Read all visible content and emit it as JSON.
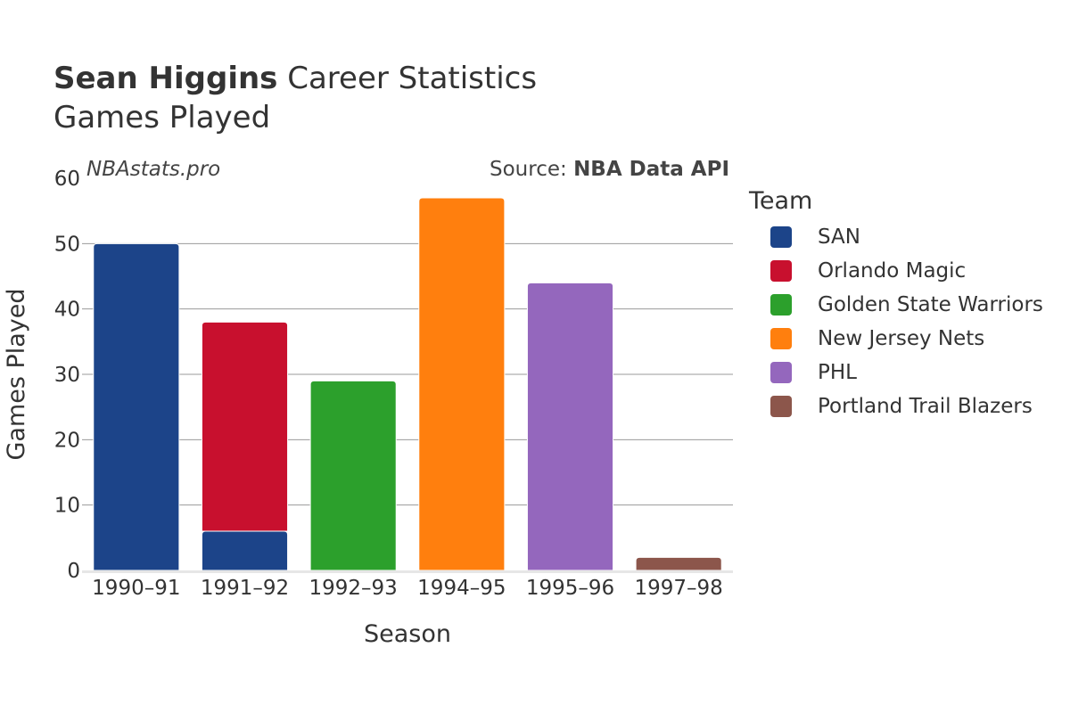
{
  "title": {
    "bold": "Sean Higgins",
    "rest": " Career Statistics",
    "subtitle": "Games Played"
  },
  "watermark": "NBAstats.pro",
  "source": {
    "prefix": "Source: ",
    "name": "NBA Data API"
  },
  "legend": {
    "title": "Team",
    "placement": "right"
  },
  "chart_data": {
    "type": "bar",
    "stacked": true,
    "title": "Sean Higgins Career Statistics",
    "subtitle": "Games Played",
    "xlabel": "Season",
    "ylabel": "Games Played",
    "ylim": [
      0,
      60
    ],
    "yticks": [
      0,
      10,
      20,
      30,
      40,
      50,
      60
    ],
    "grid": true,
    "categories": [
      "1990–91",
      "1991–92",
      "1992–93",
      "1994–95",
      "1995–96",
      "1997–98"
    ],
    "series": [
      {
        "name": "SAN",
        "color": "#1c4489",
        "values": [
          50,
          6,
          0,
          0,
          0,
          0
        ]
      },
      {
        "name": "Orlando Magic",
        "color": "#c8102e",
        "values": [
          0,
          32,
          0,
          0,
          0,
          0
        ]
      },
      {
        "name": "Golden State Warriors",
        "color": "#2ca02c",
        "values": [
          0,
          0,
          29,
          0,
          0,
          0
        ]
      },
      {
        "name": "New Jersey Nets",
        "color": "#ff7f0e",
        "values": [
          0,
          0,
          0,
          57,
          0,
          0
        ]
      },
      {
        "name": "PHL",
        "color": "#9467bd",
        "values": [
          0,
          0,
          0,
          0,
          44,
          0
        ]
      },
      {
        "name": "Portland Trail Blazers",
        "color": "#8c564b",
        "values": [
          0,
          0,
          0,
          0,
          0,
          2
        ]
      }
    ]
  }
}
